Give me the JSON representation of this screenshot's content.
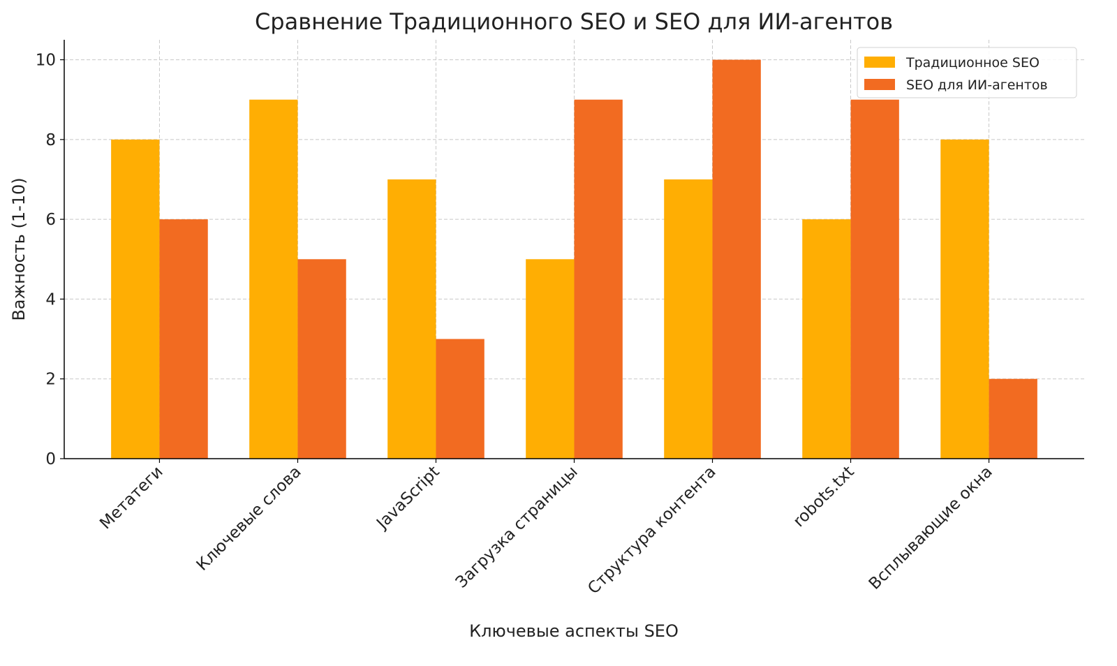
{
  "chart_data": {
    "type": "bar",
    "title": "Сравнение Традиционного SEO и SEO для ИИ-агентов",
    "xlabel": "Ключевые аспекты SEO",
    "ylabel": "Важность (1-10)",
    "categories": [
      "Метатеги",
      "Ключевые слова",
      "JavaScript",
      "Загрузка страницы",
      "Структура контента",
      "robots.txt",
      "Всплывающие окна"
    ],
    "series": [
      {
        "name": "Традиционное SEO",
        "color": "#FFAE03",
        "values": [
          8,
          9,
          7,
          5,
          7,
          6,
          8
        ]
      },
      {
        "name": "SEO для ИИ-агентов",
        "color": "#F26B21",
        "values": [
          6,
          5,
          3,
          9,
          10,
          9,
          2
        ]
      }
    ],
    "ylim": [
      0,
      10.5
    ],
    "yticks": [
      0,
      2,
      4,
      6,
      8,
      10
    ],
    "grid": true,
    "legend": "top-right"
  }
}
